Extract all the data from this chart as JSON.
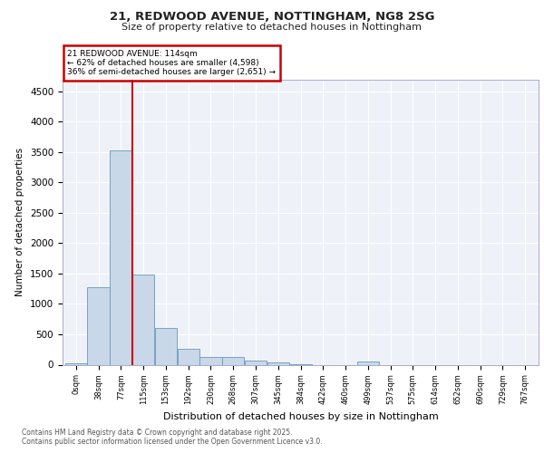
{
  "title1": "21, REDWOOD AVENUE, NOTTINGHAM, NG8 2SG",
  "title2": "Size of property relative to detached houses in Nottingham",
  "xlabel": "Distribution of detached houses by size in Nottingham",
  "ylabel": "Number of detached properties",
  "annotation_title": "21 REDWOOD AVENUE: 114sqm",
  "annotation_line1": "← 62% of detached houses are smaller (4,598)",
  "annotation_line2": "36% of semi-detached houses are larger (2,651) →",
  "bin_labels": [
    "0sqm",
    "38sqm",
    "77sqm",
    "115sqm",
    "153sqm",
    "192sqm",
    "230sqm",
    "268sqm",
    "307sqm",
    "345sqm",
    "384sqm",
    "422sqm",
    "460sqm",
    "499sqm",
    "537sqm",
    "575sqm",
    "614sqm",
    "652sqm",
    "690sqm",
    "729sqm",
    "767sqm"
  ],
  "bar_values": [
    20,
    1280,
    3530,
    1490,
    600,
    255,
    130,
    125,
    65,
    30,
    10,
    0,
    0,
    45,
    0,
    0,
    0,
    0,
    0,
    0,
    0
  ],
  "bar_color": "#c8d8e8",
  "bar_edge_color": "#6699bb",
  "vline_color": "#cc0000",
  "annotation_box_color": "#cc0000",
  "background_color": "#eef2f8",
  "grid_color": "#ffffff",
  "ylim": [
    0,
    4700
  ],
  "yticks": [
    0,
    500,
    1000,
    1500,
    2000,
    2500,
    3000,
    3500,
    4000,
    4500
  ],
  "footer_line1": "Contains HM Land Registry data © Crown copyright and database right 2025.",
  "footer_line2": "Contains public sector information licensed under the Open Government Licence v3.0."
}
